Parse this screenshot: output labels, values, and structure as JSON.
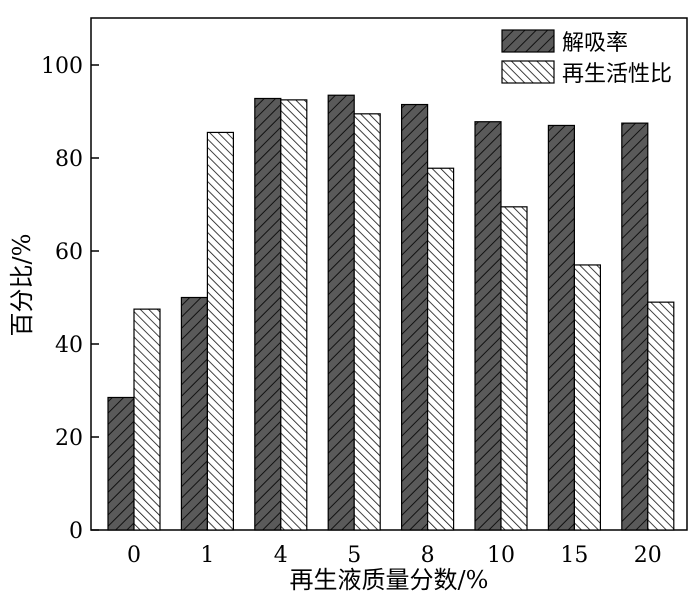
{
  "chart_data": {
    "type": "bar",
    "title": "",
    "xlabel": "再生液质量分数/%",
    "ylabel": "百分比/%",
    "ylim": [
      0,
      110
    ],
    "yticks": [
      0,
      20,
      40,
      60,
      80,
      100
    ],
    "categories": [
      "0",
      "1",
      "4",
      "5",
      "8",
      "10",
      "15",
      "20"
    ],
    "series": [
      {
        "name": "解吸率",
        "values": [
          28.5,
          50.0,
          92.8,
          93.5,
          91.5,
          87.8,
          87.0,
          87.5
        ],
        "fill": "#555555",
        "pattern": "dark-hatch"
      },
      {
        "name": "再生活性比",
        "values": [
          47.5,
          85.5,
          92.5,
          89.5,
          77.8,
          69.5,
          57.0,
          49.0
        ],
        "fill": "#ffffff",
        "pattern": "light-hatch"
      }
    ],
    "legend_position": "top-right",
    "grid": false
  }
}
